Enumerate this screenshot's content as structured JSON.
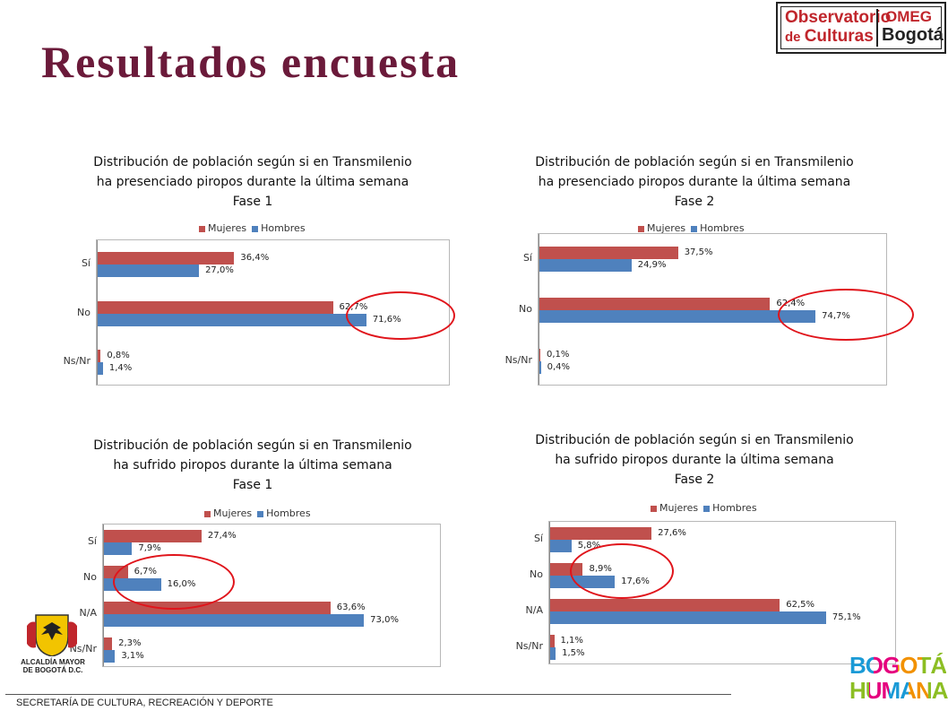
{
  "page": {
    "title": "Resultados encuesta"
  },
  "logo": {
    "line1": "Observatorio",
    "line2_a": "de ",
    "line2_b": "Culturas",
    "omeg": "OMEG",
    "city": "Bogotá"
  },
  "colors": {
    "mujeres": "#c0504d",
    "hombres": "#4f81bd",
    "circle": "#e0141b",
    "title": "#6b1a3a"
  },
  "footer": {
    "text": "SECRETARÍA DE CULTURA, RECREACIÓN Y DEPORTE",
    "alcaldia": "ALCALDÍA MAYOR DE BOGOTÁ D.C.",
    "bogota_humana_1": "BOGOTÁ",
    "bogota_humana_2": "HUMANA"
  },
  "chart_data": [
    {
      "type": "bar",
      "orientation": "horizontal",
      "title": [
        "Distribución de población según si en Transmilenio",
        "ha presenciado piropos durante la última semana",
        "Fase 1"
      ],
      "legend": "top",
      "categories": [
        "Sí",
        "No",
        "Ns/Nr"
      ],
      "series": [
        {
          "name": "Mujeres",
          "color": "#c0504d",
          "values": [
            36.4,
            62.7,
            0.8
          ],
          "labels": [
            "36,4%",
            "62,7%",
            "0,8%"
          ]
        },
        {
          "name": "Hombres",
          "color": "#4f81bd",
          "values": [
            27.0,
            71.6,
            1.4
          ],
          "labels": [
            "27,0%",
            "71,6%",
            "1,4%"
          ]
        }
      ],
      "highlighted_category": "No"
    },
    {
      "type": "bar",
      "orientation": "horizontal",
      "title": [
        "Distribución de población según si en Transmilenio",
        "ha presenciado piropos durante la última semana",
        "Fase 2"
      ],
      "legend": "top",
      "categories": [
        "Sí",
        "No",
        "Ns/Nr"
      ],
      "series": [
        {
          "name": "Mujeres",
          "color": "#c0504d",
          "values": [
            37.5,
            62.4,
            0.1
          ],
          "labels": [
            "37,5%",
            "62,4%",
            "0,1%"
          ]
        },
        {
          "name": "Hombres",
          "color": "#4f81bd",
          "values": [
            24.9,
            74.7,
            0.4
          ],
          "labels": [
            "24,9%",
            "74,7%",
            "0,4%"
          ]
        }
      ],
      "highlighted_category": "No"
    },
    {
      "type": "bar",
      "orientation": "horizontal",
      "title": [
        "Distribución de población según si en Transmilenio",
        "ha sufrido piropos durante la última semana",
        "Fase 1"
      ],
      "legend": "top",
      "categories": [
        "Sí",
        "No",
        "N/A",
        "Ns/Nr"
      ],
      "series": [
        {
          "name": "Mujeres",
          "color": "#c0504d",
          "values": [
            27.4,
            6.7,
            63.6,
            2.3
          ],
          "labels": [
            "27,4%",
            "6,7%",
            "63,6%",
            "2,3%"
          ]
        },
        {
          "name": "Hombres",
          "color": "#4f81bd",
          "values": [
            7.9,
            16.0,
            73.0,
            3.1
          ],
          "labels": [
            "7,9%",
            "16,0%",
            "73,0%",
            "3,1%"
          ]
        }
      ],
      "highlighted_category": "No"
    },
    {
      "type": "bar",
      "orientation": "horizontal",
      "title": [
        "Distribución de población según si en Transmilenio",
        "ha sufrido piropos durante la última semana",
        "Fase 2"
      ],
      "legend": "top",
      "categories": [
        "Sí",
        "No",
        "N/A",
        "Ns/Nr"
      ],
      "series": [
        {
          "name": "Mujeres",
          "color": "#c0504d",
          "values": [
            27.6,
            8.9,
            62.5,
            1.1
          ],
          "labels": [
            "27,6%",
            "8,9%",
            "62,5%",
            "1,1%"
          ]
        },
        {
          "name": "Hombres",
          "color": "#4f81bd",
          "values": [
            5.8,
            17.6,
            75.1,
            1.5
          ],
          "labels": [
            "5,8%",
            "17,6%",
            "75,1%",
            "1,5%"
          ]
        }
      ],
      "highlighted_category": "No"
    }
  ]
}
